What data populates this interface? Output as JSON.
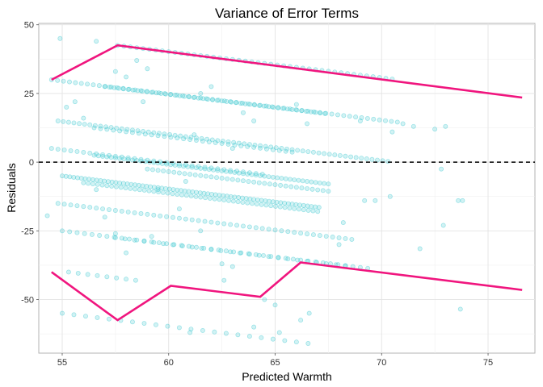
{
  "chart_data": {
    "type": "scatter",
    "title": "Variance of Error Terms",
    "xlabel": "Predicted Warmth",
    "ylabel": "Residuals",
    "xlim": [
      53.9,
      77.2
    ],
    "ylim": [
      -69.5,
      50.5
    ],
    "x_ticks": [
      55,
      60,
      65,
      70,
      75
    ],
    "y_ticks": [
      50,
      25,
      0,
      -25,
      -50
    ],
    "x_tick_labels": [
      "55",
      "60",
      "65",
      "70",
      "75"
    ],
    "y_tick_labels": [
      "50",
      "25",
      "0",
      "-25",
      "-50"
    ],
    "grid": true,
    "legend": "none",
    "point_color": "#2ec4cc",
    "line_color": "#f0157e",
    "reference_line": {
      "y": 0,
      "style": "dashed",
      "color": "#000000"
    },
    "upper_bound": {
      "x": [
        54.5,
        57.6,
        76.6
      ],
      "y": [
        30,
        42.5,
        23.5
      ]
    },
    "lower_bound": {
      "x": [
        54.5,
        57.6,
        60.1,
        64.3,
        66.2,
        76.6
      ],
      "y": [
        -40,
        -57.5,
        -45,
        -49,
        -36.5,
        -46.5
      ]
    },
    "bands": [
      {
        "y0": 42.5,
        "x_from": 57.6,
        "x_to": 70.5,
        "slope": -0.95,
        "step": 0.3
      },
      {
        "y0": 30,
        "x_from": 54.5,
        "x_to": 70.8,
        "slope": -0.95,
        "step": 0.28
      },
      {
        "y0": 27.5,
        "x_from": 57.0,
        "x_to": 67.5,
        "slope": -0.95,
        "step": 0.22
      },
      {
        "y0": 15,
        "x_from": 54.8,
        "x_to": 70.3,
        "slope": -0.95,
        "step": 0.25
      },
      {
        "y0": 12.5,
        "x_from": 56.5,
        "x_to": 66.0,
        "slope": -0.95,
        "step": 0.3
      },
      {
        "y0": 5,
        "x_from": 54.5,
        "x_to": 64.5,
        "slope": -0.95,
        "step": 0.3
      },
      {
        "y0": 2.5,
        "x_from": 56.5,
        "x_to": 67.5,
        "slope": -0.95,
        "step": 0.2
      },
      {
        "y0": -2.5,
        "x_from": 59.0,
        "x_to": 67.5,
        "slope": -0.95,
        "step": 0.25
      },
      {
        "y0": -5,
        "x_from": 55.0,
        "x_to": 67.2,
        "slope": -0.95,
        "step": 0.18
      },
      {
        "y0": -7.5,
        "x_from": 56.0,
        "x_to": 67.0,
        "slope": -0.95,
        "step": 0.22
      },
      {
        "y0": -15,
        "x_from": 54.8,
        "x_to": 68.8,
        "slope": -0.95,
        "step": 0.3
      },
      {
        "y0": -25,
        "x_from": 55.0,
        "x_to": 69.5,
        "slope": -0.95,
        "step": 0.35
      },
      {
        "y0": -27.5,
        "x_from": 57.5,
        "x_to": 68.5,
        "slope": -0.95,
        "step": 0.45
      },
      {
        "y0": -40,
        "x_from": 55.3,
        "x_to": 58.5,
        "slope": -0.95,
        "step": 0.45
      },
      {
        "y0": -55,
        "x_from": 55.0,
        "x_to": 67.0,
        "slope": -0.95,
        "step": 0.55
      }
    ],
    "outliers": [
      [
        54.9,
        45
      ],
      [
        56.6,
        44
      ],
      [
        58.5,
        37
      ],
      [
        59.0,
        34
      ],
      [
        58.0,
        31
      ],
      [
        57.5,
        33
      ],
      [
        61.5,
        25
      ],
      [
        62.0,
        27.5
      ],
      [
        63.5,
        18
      ],
      [
        64.0,
        15
      ],
      [
        66.0,
        21
      ],
      [
        66.5,
        14
      ],
      [
        69.0,
        15
      ],
      [
        70.5,
        11
      ],
      [
        71.0,
        14
      ],
      [
        71.5,
        13
      ],
      [
        72.5,
        12
      ],
      [
        73.0,
        13
      ],
      [
        72.8,
        -2.5
      ],
      [
        73.8,
        -14
      ],
      [
        73.6,
        -14
      ],
      [
        70.4,
        -12.5
      ],
      [
        69.7,
        -14
      ],
      [
        69.2,
        -14
      ],
      [
        71.8,
        -31.5
      ],
      [
        72.9,
        -23
      ],
      [
        73.7,
        -53.5
      ],
      [
        68.2,
        -22
      ],
      [
        68.0,
        -30
      ],
      [
        54.3,
        -19.5
      ],
      [
        56.6,
        -10
      ],
      [
        57.5,
        -26
      ],
      [
        60.8,
        -7
      ],
      [
        61.5,
        -25
      ],
      [
        62.6,
        -43
      ],
      [
        64.5,
        -50
      ],
      [
        65.0,
        -52
      ],
      [
        66.2,
        -57.5
      ],
      [
        66.6,
        -55
      ],
      [
        64.0,
        -60
      ],
      [
        65.2,
        -62
      ],
      [
        61.0,
        -62
      ],
      [
        58.0,
        -33
      ],
      [
        59.5,
        -10
      ],
      [
        55.2,
        20
      ],
      [
        55.6,
        22
      ],
      [
        56.0,
        16
      ],
      [
        58.8,
        22
      ],
      [
        61.2,
        10
      ],
      [
        63.0,
        5
      ],
      [
        57.0,
        -20
      ],
      [
        59.2,
        -27
      ],
      [
        62.5,
        -37
      ],
      [
        63.0,
        -38
      ],
      [
        60.5,
        -17
      ]
    ]
  }
}
